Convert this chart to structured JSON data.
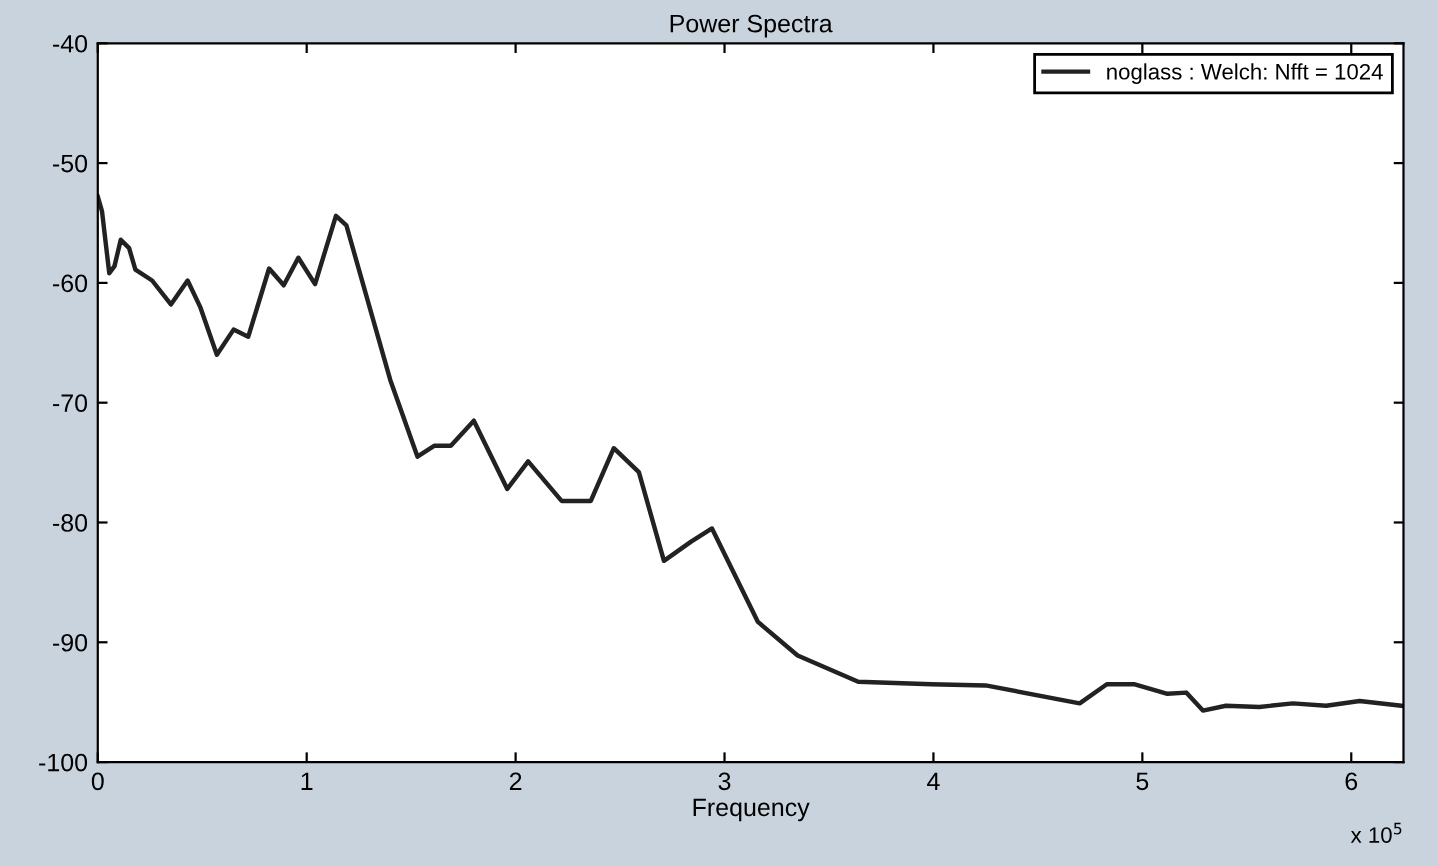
{
  "chart_data": {
    "type": "line",
    "title": "Power Spectra",
    "xlabel": "Frequency",
    "annotations": [
      "x 10$^{5}$"
    ],
    "x": [
      0,
      0.02,
      0.055,
      0.08,
      0.11,
      0.15,
      0.18,
      0.26,
      0.35,
      0.43,
      0.49,
      0.57,
      0.65,
      0.72,
      0.82,
      0.89,
      0.96,
      1.04,
      1.14,
      1.19,
      1.32,
      1.4,
      1.53,
      1.61,
      1.69,
      1.8,
      1.96,
      2.06,
      2.22,
      2.36,
      2.47,
      2.59,
      2.71,
      2.84,
      2.94,
      3.16,
      3.35,
      3.64,
      3.99,
      4.25,
      4.7,
      4.83,
      4.96,
      5.12,
      5.21,
      5.29,
      5.4,
      5.56,
      5.72,
      5.88,
      6.04,
      6.24
    ],
    "series": [
      {
        "name": "noglass : Welch: Nfft = 1024",
        "color": "#222222",
        "values": [
          -52.8,
          -54,
          -59.2,
          -58.6,
          -56.4,
          -57.1,
          -58.9,
          -59.8,
          -61.8,
          -59.8,
          -62,
          -66,
          -63.9,
          -64.5,
          -58.8,
          -60.2,
          -57.9,
          -60.1,
          -54.4,
          -55.2,
          -63.2,
          -68.1,
          -74.5,
          -73.6,
          -73.6,
          -71.5,
          -77.2,
          -74.9,
          -78.2,
          -78.2,
          -73.8,
          -75.8,
          -83.2,
          -81.6,
          -80.5,
          -88.3,
          -91.1,
          -93.3,
          -93.5,
          -93.6,
          -95.1,
          -93.5,
          -93.5,
          -94.3,
          -94.2,
          -95.7,
          -95.3,
          -95.4,
          -95.1,
          -95.3,
          -94.9,
          -95.3
        ]
      }
    ],
    "xlim": [
      0,
      6.25
    ],
    "ylim": [
      -100,
      -40
    ],
    "xticks": [
      0,
      1,
      2,
      3,
      4,
      5,
      6
    ],
    "yticks": [
      -100,
      -90,
      -80,
      -70,
      -60,
      -50,
      -40
    ],
    "grid": false,
    "legend": "top right",
    "marker": "none",
    "line_style": "solid"
  }
}
